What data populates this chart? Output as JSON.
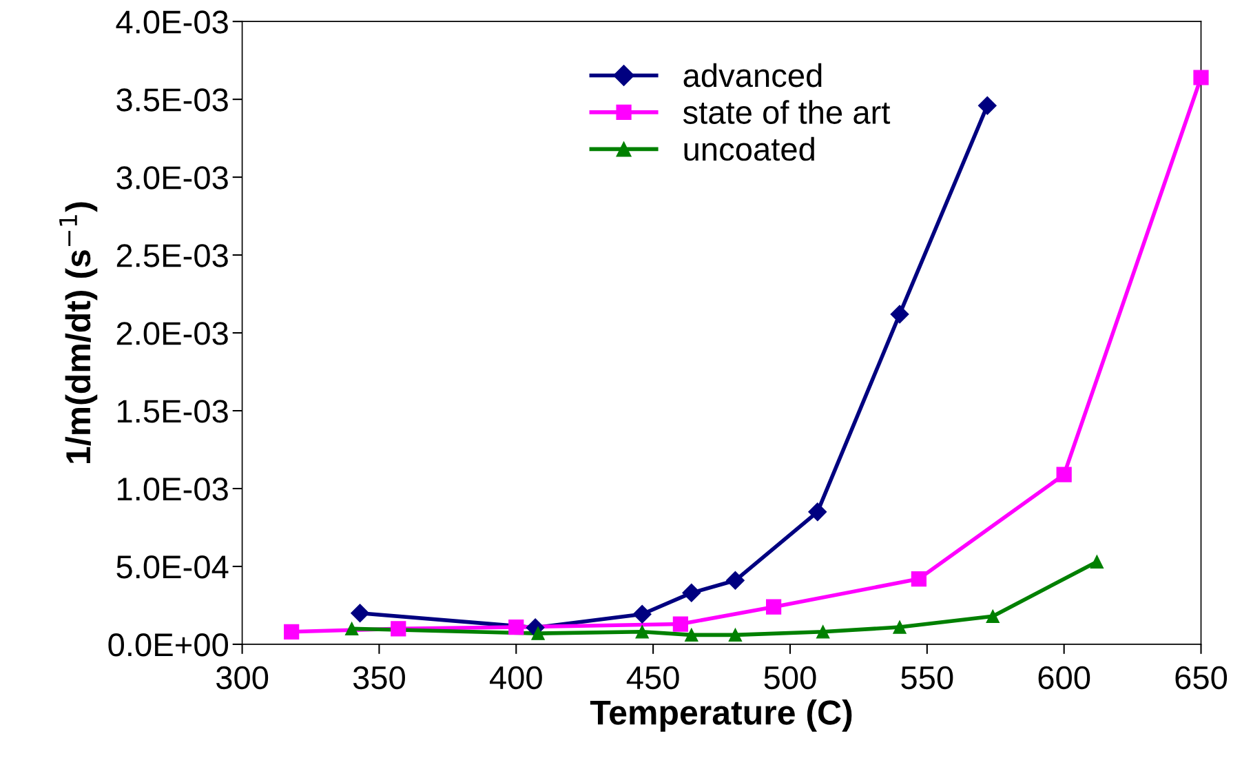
{
  "chart_data": {
    "type": "line",
    "xlabel": "Temperature (C)",
    "ylabel": "1/m(dm/dt) (s$^{−1}$)",
    "xlim": [
      300,
      650
    ],
    "xticks": [
      300,
      350,
      400,
      450,
      500,
      550,
      600,
      650
    ],
    "ylim": [
      0,
      0.004
    ],
    "yticks": [
      {
        "value": 0,
        "label": "0.0E+00"
      },
      {
        "value": 0.0005,
        "label": "5.0E-04"
      },
      {
        "value": 0.001,
        "label": "1.0E-03"
      },
      {
        "value": 0.0015,
        "label": "1.5E-03"
      },
      {
        "value": 0.002,
        "label": "2.0E-03"
      },
      {
        "value": 0.0025,
        "label": "2.5E-03"
      },
      {
        "value": 0.003,
        "label": "3.0E-03"
      },
      {
        "value": 0.0035,
        "label": "3.5E-03"
      },
      {
        "value": 0.004,
        "label": "4.0E-03"
      }
    ],
    "grid": false,
    "legend": "top",
    "line_style": "solid",
    "series": [
      {
        "name": "advanced",
        "color": "#000080",
        "marker": "diamond",
        "x": [
          343,
          407,
          446,
          464,
          480,
          510,
          540,
          572
        ],
        "values": [
          0.0002,
          0.000107,
          0.000193,
          0.00033,
          0.00041,
          0.00085,
          0.00212,
          0.00346
        ]
      },
      {
        "name": "state of the art",
        "color": "#ff00ff",
        "marker": "square",
        "x": [
          318,
          357,
          400,
          460,
          494,
          547,
          600,
          650
        ],
        "values": [
          8e-05,
          0.0001,
          0.00011,
          0.00013,
          0.00024,
          0.00042,
          0.00109,
          0.00364
        ]
      },
      {
        "name": "uncoated",
        "color": "#008000",
        "marker": "triangle",
        "x": [
          340,
          408,
          446,
          464,
          480,
          512,
          540,
          574,
          612
        ],
        "values": [
          0.0001,
          7e-05,
          8e-05,
          6e-05,
          6e-05,
          8e-05,
          0.00011,
          0.00018,
          0.00053
        ]
      }
    ]
  }
}
